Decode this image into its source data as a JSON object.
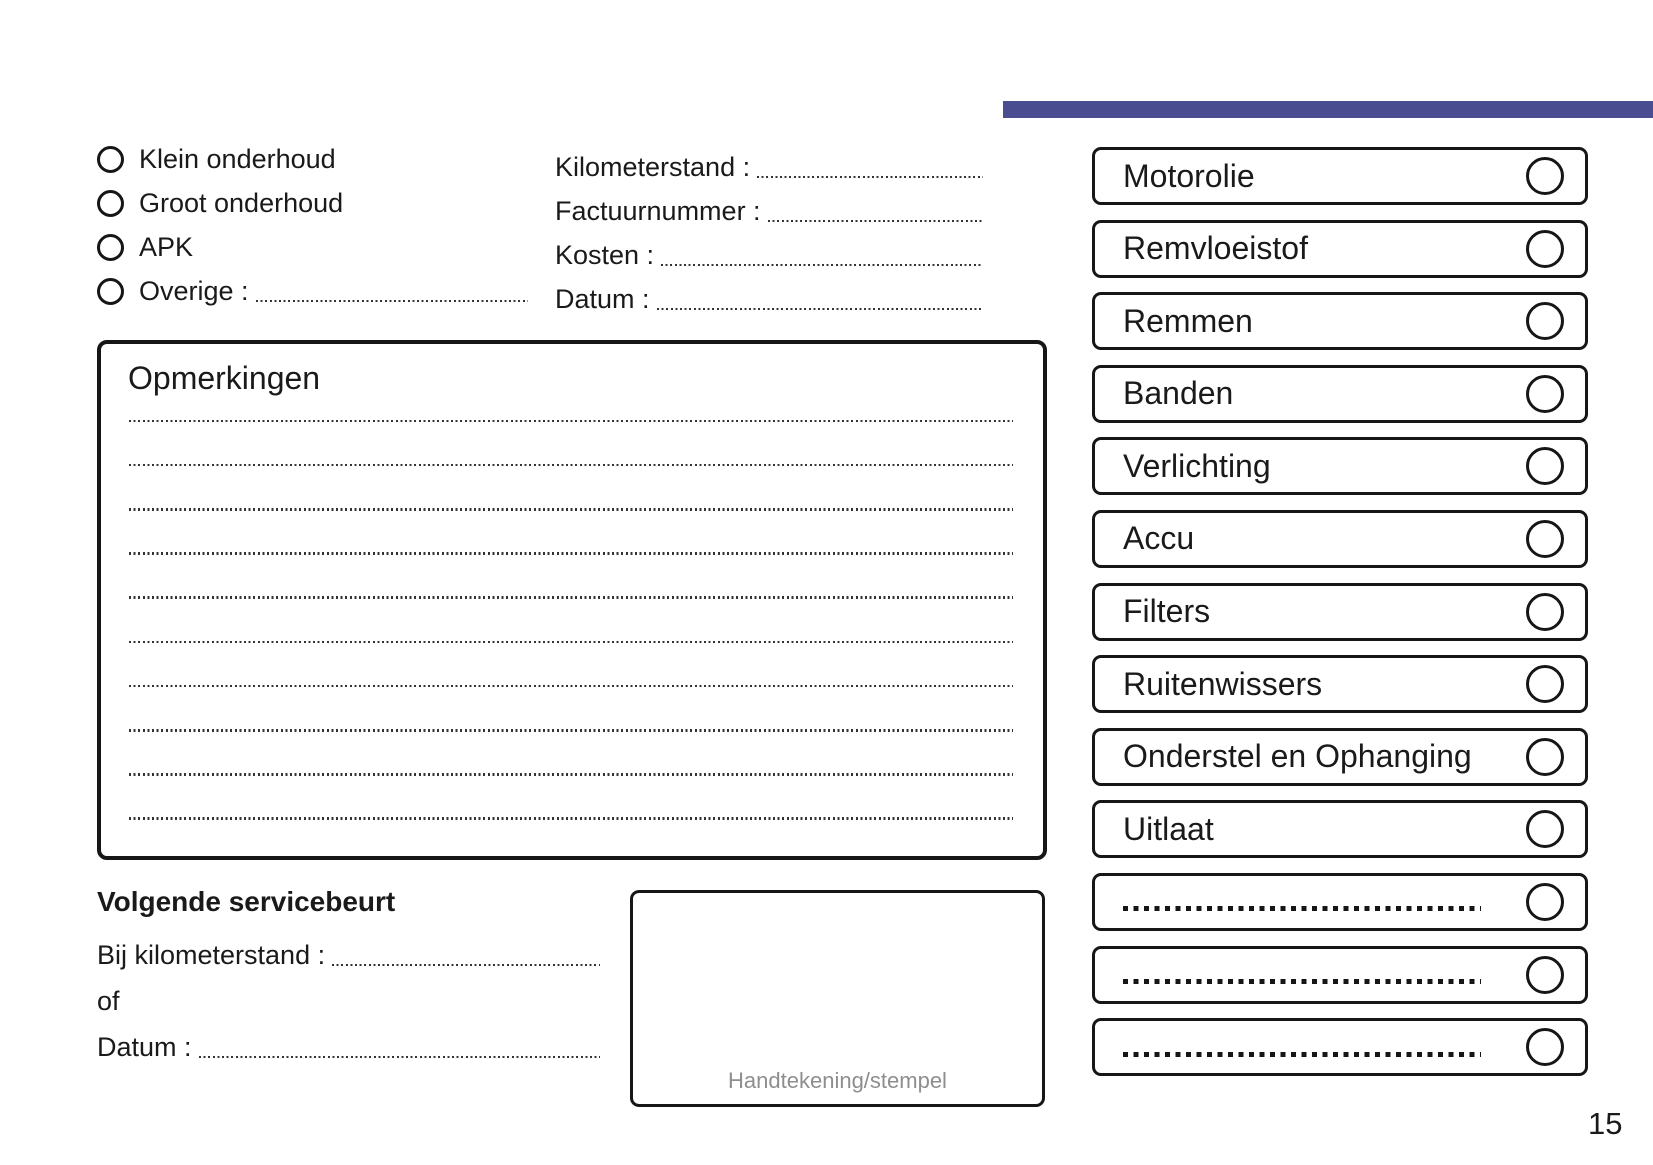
{
  "colors": {
    "accent_bar": "#4a4e90",
    "ink": "#1a1a1a",
    "muted_caption": "#8e8e8e"
  },
  "service_types": {
    "items": [
      {
        "label": "Klein onderhoud",
        "leader": false
      },
      {
        "label": "Groot onderhoud",
        "leader": false
      },
      {
        "label": "APK",
        "leader": false
      },
      {
        "label": "Overige :",
        "leader": true
      }
    ]
  },
  "invoice_fields": {
    "items": [
      {
        "label": "Kilometerstand :"
      },
      {
        "label": "Factuurnummer :"
      },
      {
        "label": "Kosten :"
      },
      {
        "label": "Datum :"
      }
    ]
  },
  "remarks": {
    "title": "Opmerkingen",
    "lines": [
      "",
      "",
      "",
      "",
      "",
      "",
      "",
      "",
      "",
      ""
    ]
  },
  "next_service": {
    "title": "Volgende servicebeurt",
    "rows": [
      {
        "label": "Bij kilometerstand :",
        "leader": true
      },
      {
        "label": "of",
        "leader": false
      },
      {
        "label": "Datum :",
        "leader": true
      }
    ]
  },
  "signature": {
    "caption": "Handtekening/stempel"
  },
  "checklist": {
    "items": [
      {
        "label": "Motorolie",
        "blank": false
      },
      {
        "label": "Remvloeistof",
        "blank": false
      },
      {
        "label": "Remmen",
        "blank": false
      },
      {
        "label": "Banden",
        "blank": false
      },
      {
        "label": "Verlichting",
        "blank": false
      },
      {
        "label": "Accu",
        "blank": false
      },
      {
        "label": "Filters",
        "blank": false
      },
      {
        "label": "Ruitenwissers",
        "blank": false
      },
      {
        "label": "Onderstel en Ophanging",
        "blank": false
      },
      {
        "label": "Uitlaat",
        "blank": false
      },
      {
        "label": "",
        "blank": true
      },
      {
        "label": "",
        "blank": true
      },
      {
        "label": "",
        "blank": true
      }
    ]
  },
  "page": {
    "number": "15"
  }
}
